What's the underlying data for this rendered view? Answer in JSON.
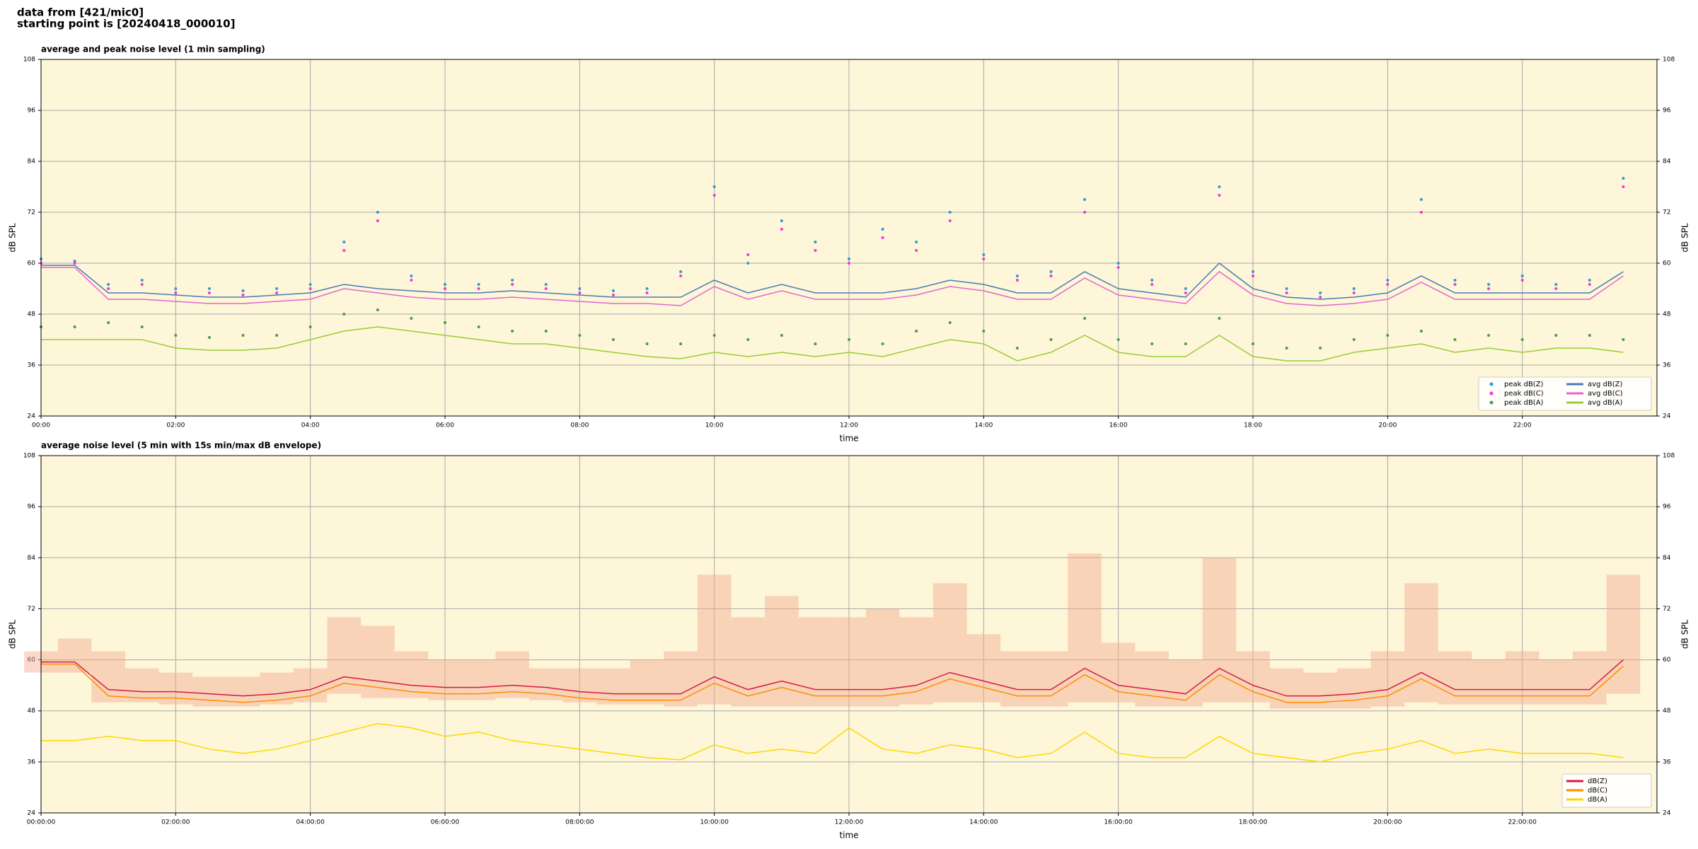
{
  "header": {
    "line1": "data from [421/mic0]",
    "line2": "starting point is [20240418_000010]"
  },
  "chart_data": [
    {
      "type": "line",
      "title": "average and peak noise level (1 min sampling)",
      "xlabel": "time",
      "ylabel": "dB SPL",
      "x": [
        0,
        0.5,
        1,
        1.5,
        2,
        2.5,
        3,
        3.5,
        4,
        4.5,
        5,
        5.5,
        6,
        6.5,
        7,
        7.5,
        8,
        8.5,
        9,
        9.5,
        10,
        10.5,
        11,
        11.5,
        12,
        12.5,
        13,
        13.5,
        14,
        14.5,
        15,
        15.5,
        16,
        16.5,
        17,
        17.5,
        18,
        18.5,
        19,
        19.5,
        20,
        20.5,
        21,
        21.5,
        22,
        22.5,
        23,
        23.5
      ],
      "xlim": [
        0,
        24
      ],
      "ylim": [
        24,
        108
      ],
      "yticks": [
        24,
        36,
        48,
        60,
        72,
        84,
        96,
        108
      ],
      "xticks": [
        {
          "value": 0,
          "label": "00:00"
        },
        {
          "value": 2,
          "label": "02:00"
        },
        {
          "value": 4,
          "label": "04:00"
        },
        {
          "value": 6,
          "label": "06:00"
        },
        {
          "value": 8,
          "label": "08:00"
        },
        {
          "value": 10,
          "label": "10:00"
        },
        {
          "value": 12,
          "label": "12:00"
        },
        {
          "value": 14,
          "label": "14:00"
        },
        {
          "value": 16,
          "label": "16:00"
        },
        {
          "value": 18,
          "label": "18:00"
        },
        {
          "value": 20,
          "label": "20:00"
        },
        {
          "value": 22,
          "label": "22:00"
        }
      ],
      "grid": true,
      "background": "#fdf6d9",
      "legend": "lower right",
      "legend_columns": 2,
      "series": [
        {
          "name": "peak dB(Z)",
          "type": "scatter",
          "color": "#2e9bd6",
          "values": [
            61,
            60.5,
            55,
            56,
            54,
            54,
            53.5,
            54,
            55,
            65,
            72,
            57,
            55,
            55,
            56,
            55,
            54,
            53.5,
            54,
            58,
            78,
            60,
            70,
            65,
            61,
            68,
            65,
            72,
            62,
            57,
            58,
            75,
            60,
            56,
            54,
            78,
            58,
            54,
            53,
            54,
            56,
            75,
            56,
            55,
            57,
            55,
            56,
            80
          ]
        },
        {
          "name": "peak dB(C)",
          "type": "scatter",
          "color": "#ff33cc",
          "values": [
            60,
            60,
            54,
            55,
            53,
            53,
            52.5,
            53,
            54,
            63,
            70,
            56,
            54,
            54,
            55,
            54,
            53,
            52.5,
            53,
            57,
            76,
            62,
            68,
            63,
            60,
            66,
            63,
            70,
            61,
            56,
            57,
            72,
            59,
            55,
            53,
            76,
            57,
            53,
            52,
            53,
            55,
            72,
            55,
            54,
            56,
            54,
            55,
            78
          ]
        },
        {
          "name": "peak dB(A)",
          "type": "scatter",
          "color": "#4c9a4c",
          "values": [
            45,
            45,
            46,
            45,
            43,
            42.5,
            43,
            43,
            45,
            48,
            49,
            47,
            46,
            45,
            44,
            44,
            43,
            42,
            41,
            41,
            43,
            42,
            43,
            41,
            42,
            41,
            44,
            46,
            44,
            40,
            42,
            47,
            42,
            41,
            41,
            47,
            41,
            40,
            40,
            42,
            43,
            44,
            42,
            43,
            42,
            43,
            43,
            42
          ]
        },
        {
          "name": "avg dB(Z)",
          "type": "line",
          "color": "#4a7ab5",
          "values": [
            59.5,
            59.5,
            53,
            53,
            52.5,
            52,
            52,
            52.5,
            53,
            55,
            54,
            53.5,
            53,
            53,
            53.5,
            53,
            52.5,
            52,
            52,
            52,
            56,
            53,
            55,
            53,
            53,
            53,
            54,
            56,
            55,
            53,
            53,
            58,
            54,
            53,
            52,
            60,
            54,
            52,
            51.5,
            52,
            53,
            57,
            53,
            53,
            53,
            53,
            53,
            58
          ]
        },
        {
          "name": "avg dB(C)",
          "type": "line",
          "color": "#e466cc",
          "values": [
            59,
            59,
            51.5,
            51.5,
            51,
            50.5,
            50.5,
            51,
            51.5,
            54,
            53,
            52,
            51.5,
            51.5,
            52,
            51.5,
            51,
            50.5,
            50.5,
            50,
            54.5,
            51.5,
            53.5,
            51.5,
            51.5,
            51.5,
            52.5,
            54.5,
            53.5,
            51.5,
            51.5,
            56.5,
            52.5,
            51.5,
            50.5,
            58,
            52.5,
            50.5,
            50,
            50.5,
            51.5,
            55.5,
            51.5,
            51.5,
            51.5,
            51.5,
            51.5,
            57
          ]
        },
        {
          "name": "avg dB(A)",
          "type": "line",
          "color": "#9acd32",
          "values": [
            42,
            42,
            42,
            42,
            40,
            39.5,
            39.5,
            40,
            42,
            44,
            45,
            44,
            43,
            42,
            41,
            41,
            40,
            39,
            38,
            37.5,
            39,
            38,
            39,
            38,
            39,
            38,
            40,
            42,
            41,
            37,
            39,
            43,
            39,
            38,
            38,
            43,
            38,
            37,
            37,
            39,
            40,
            41,
            39,
            40,
            39,
            40,
            40,
            39
          ]
        }
      ]
    },
    {
      "type": "line",
      "title": "average noise level (5 min with 15s min/max dB envelope)",
      "xlabel": "time",
      "ylabel": "dB SPL",
      "x": [
        0,
        0.5,
        1,
        1.5,
        2,
        2.5,
        3,
        3.5,
        4,
        4.5,
        5,
        5.5,
        6,
        6.5,
        7,
        7.5,
        8,
        8.5,
        9,
        9.5,
        10,
        10.5,
        11,
        11.5,
        12,
        12.5,
        13,
        13.5,
        14,
        14.5,
        15,
        15.5,
        16,
        16.5,
        17,
        17.5,
        18,
        18.5,
        19,
        19.5,
        20,
        20.5,
        21,
        21.5,
        22,
        22.5,
        23,
        23.5
      ],
      "xlim": [
        0,
        24
      ],
      "ylim": [
        24,
        108
      ],
      "yticks": [
        24,
        36,
        48,
        60,
        72,
        84,
        96,
        108
      ],
      "xticks": [
        {
          "value": 0,
          "label": "00:00:00"
        },
        {
          "value": 2,
          "label": "02:00:00"
        },
        {
          "value": 4,
          "label": "04:00:00"
        },
        {
          "value": 6,
          "label": "06:00:00"
        },
        {
          "value": 8,
          "label": "08:00:00"
        },
        {
          "value": 10,
          "label": "10:00:00"
        },
        {
          "value": 12,
          "label": "12:00:00"
        },
        {
          "value": 14,
          "label": "14:00:00"
        },
        {
          "value": 16,
          "label": "16:00:00"
        },
        {
          "value": 18,
          "label": "18:00:00"
        },
        {
          "value": 20,
          "label": "20:00:00"
        },
        {
          "value": 22,
          "label": "22:00:00"
        }
      ],
      "grid": true,
      "background": "#fdf6d9",
      "legend": "lower right",
      "legend_columns": 1,
      "envelope": {
        "color": "#f4a98f",
        "max": [
          62,
          65,
          62,
          58,
          57,
          56,
          56,
          57,
          58,
          70,
          68,
          62,
          60,
          60,
          62,
          58,
          58,
          58,
          60,
          62,
          80,
          70,
          75,
          70,
          70,
          72,
          70,
          78,
          66,
          62,
          62,
          85,
          64,
          62,
          60,
          84,
          62,
          58,
          57,
          58,
          62,
          78,
          62,
          60,
          62,
          60,
          62,
          80
        ],
        "min": [
          57,
          57,
          50,
          50,
          49.5,
          49,
          49,
          49.5,
          50,
          52,
          51,
          51,
          50.5,
          50.5,
          51,
          50.5,
          50,
          49.5,
          49.5,
          49,
          49.5,
          49,
          49,
          49,
          49,
          49,
          49.5,
          50,
          50,
          49,
          49,
          50,
          50,
          49,
          49,
          50,
          50,
          48.5,
          48.5,
          48.5,
          49,
          50,
          49.5,
          49.5,
          49.5,
          49.5,
          49.5,
          52
        ]
      },
      "series": [
        {
          "name": "dB(Z)",
          "type": "line",
          "color": "#d41a44",
          "values": [
            59.5,
            59.5,
            53,
            52.5,
            52.5,
            52,
            51.5,
            52,
            53,
            56,
            55,
            54,
            53.5,
            53.5,
            54,
            53.5,
            52.5,
            52,
            52,
            52,
            56,
            53,
            55,
            53,
            53,
            53,
            54,
            57,
            55,
            53,
            53,
            58,
            54,
            53,
            52,
            58,
            54,
            51.5,
            51.5,
            52,
            53,
            57,
            53,
            53,
            53,
            53,
            53,
            60
          ]
        },
        {
          "name": "dB(C)",
          "type": "line",
          "color": "#ff8c00",
          "values": [
            59,
            59,
            51.5,
            51,
            51,
            50.5,
            50,
            50.5,
            51.5,
            54.5,
            53.5,
            52.5,
            52,
            52,
            52.5,
            52,
            51,
            50.5,
            50.5,
            50.5,
            54.5,
            51.5,
            53.5,
            51.5,
            51.5,
            51.5,
            52.5,
            55.5,
            53.5,
            51.5,
            51.5,
            56.5,
            52.5,
            51.5,
            50.5,
            56.5,
            52.5,
            50,
            50,
            50.5,
            51.5,
            55.5,
            51.5,
            51.5,
            51.5,
            51.5,
            51.5,
            58.5
          ]
        },
        {
          "name": "dB(A)",
          "type": "line",
          "color": "#ffd700",
          "values": [
            41,
            41,
            42,
            41,
            41,
            39,
            38,
            39,
            41,
            43,
            45,
            44,
            42,
            43,
            41,
            40,
            39,
            38,
            37,
            36.5,
            40,
            38,
            39,
            38,
            44,
            39,
            38,
            40,
            39,
            37,
            38,
            43,
            38,
            37,
            37,
            42,
            38,
            37,
            36,
            38,
            39,
            41,
            38,
            39,
            38,
            38,
            38,
            37
          ]
        }
      ]
    }
  ]
}
